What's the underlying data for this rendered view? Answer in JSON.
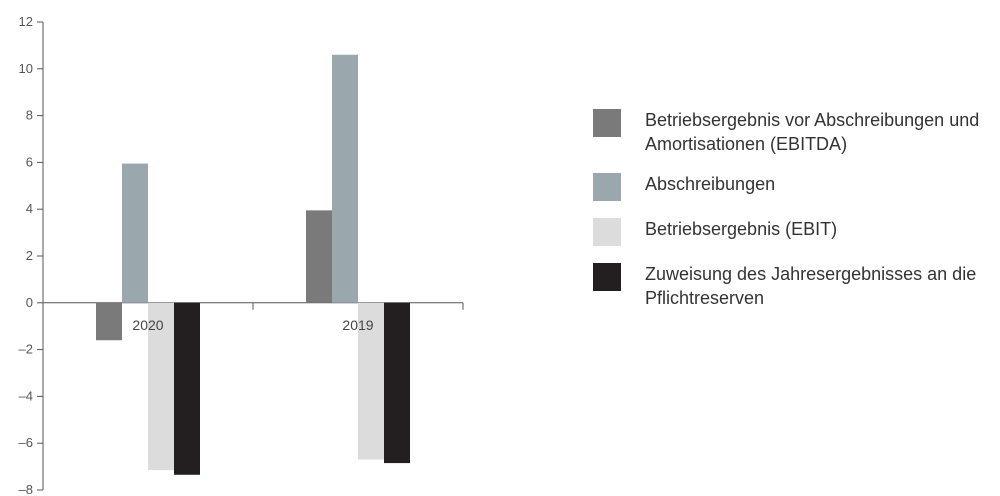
{
  "chart_data": {
    "type": "bar",
    "categories": [
      "2020",
      "2019"
    ],
    "series": [
      {
        "name": "Betriebsergebnis vor Abschreibungen und Amortisationen (EBITDA)",
        "values": [
          -1.6,
          3.95
        ],
        "color": "#7a7a7a"
      },
      {
        "name": "Abschreibungen",
        "values": [
          5.95,
          10.6
        ],
        "color": "#9aa8ae"
      },
      {
        "name": "Betriebsergebnis (EBIT)",
        "values": [
          -7.15,
          -6.7
        ],
        "color": "#dcdcdc"
      },
      {
        "name": "Zuweisung des Jahresergebnisses an die Pflichtreserven",
        "values": [
          -7.35,
          -6.85
        ],
        "color": "#231f20"
      }
    ],
    "ylim": [
      -8,
      12
    ],
    "yticks": [
      -8,
      -6,
      -4,
      -2,
      0,
      2,
      4,
      6,
      8,
      10,
      12
    ],
    "ytick_labels": [
      "–8",
      "–6",
      "–4",
      "–2",
      "0",
      "2",
      "4",
      "6",
      "8",
      "10",
      "12"
    ],
    "legend_position": "right",
    "grid": false
  }
}
